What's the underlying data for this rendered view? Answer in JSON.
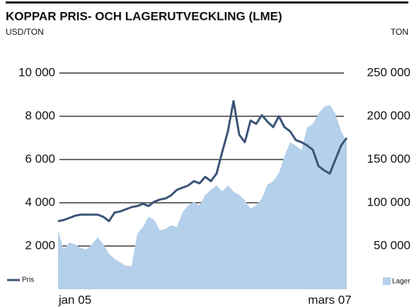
{
  "chart_data": {
    "type": "line",
    "title": "KOPPAR PRIS- OCH LAGERUTVECKLING (LME)",
    "y_label": "USD/TON",
    "y2_label": "TON",
    "categories": [
      null,
      null,
      null,
      "jan 05",
      null,
      null,
      null,
      null,
      null,
      null,
      null,
      null,
      null,
      null,
      null,
      null,
      null,
      null,
      null,
      null,
      null,
      null,
      null,
      null,
      null,
      null,
      null,
      null,
      null,
      null,
      null,
      null,
      null,
      null,
      null,
      null,
      null,
      null,
      null,
      null,
      null,
      null,
      null,
      null,
      null,
      null,
      null,
      null,
      "mars 07",
      null,
      null,
      null
    ],
    "series": [
      {
        "name": "Pris",
        "color": "#3d5478",
        "type": "line",
        "values": [
          3150,
          3200,
          3300,
          3400,
          3450,
          3450,
          3450,
          3450,
          3350,
          3150,
          3550,
          3600,
          3700,
          3800,
          3850,
          3950,
          3850,
          4050,
          4150,
          4200,
          4350,
          4600,
          4700,
          4800,
          5000,
          4900,
          5200,
          5000,
          5350,
          6350,
          7300,
          8700,
          7150,
          6800,
          7800,
          7650,
          8050,
          7750,
          7500,
          8000,
          7500,
          7300,
          6900,
          6800,
          6650,
          6450,
          5700,
          5500,
          5350,
          6000,
          6650,
          7000
        ]
      },
      {
        "name": "Lager",
        "color": "#b4d0ea",
        "type": "area",
        "axis": "y2",
        "values": [
          68000,
          46000,
          54000,
          52000,
          48000,
          46000,
          52000,
          60000,
          52000,
          41000,
          35000,
          31000,
          27000,
          27000,
          64000,
          72000,
          84000,
          80000,
          68000,
          70000,
          74000,
          72000,
          89000,
          97000,
          101000,
          97000,
          109000,
          115000,
          120000,
          113000,
          120000,
          113000,
          109000,
          103000,
          93000,
          97000,
          105000,
          121000,
          125000,
          134000,
          154000,
          170000,
          166000,
          161000,
          187000,
          191000,
          203000,
          211000,
          213000,
          203000,
          183000,
          170000
        ]
      }
    ],
    "ylim": [
      0,
      10000
    ],
    "yticks": [
      {
        "value": 2000,
        "label": "2 000"
      },
      {
        "value": 4000,
        "label": "4 000"
      },
      {
        "value": 6000,
        "label": "6 000"
      },
      {
        "value": 8000,
        "label": "8 000"
      },
      {
        "value": 10000,
        "label": "10 000"
      }
    ],
    "y2lim": [
      0,
      250000
    ],
    "y2ticks": [
      {
        "value": 50000,
        "label": "50 000"
      },
      {
        "value": 100000,
        "label": "100 000"
      },
      {
        "value": 150000,
        "label": "150 000"
      },
      {
        "value": 200000,
        "label": "200 000"
      },
      {
        "value": 250000,
        "label": "250 000"
      }
    ],
    "grid": true
  }
}
